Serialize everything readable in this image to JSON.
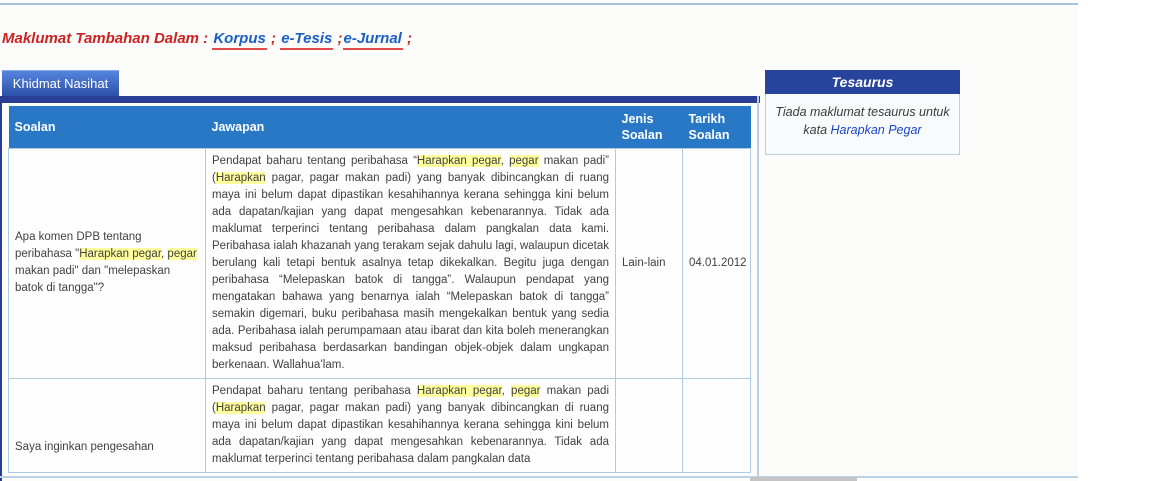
{
  "header": {
    "title": "Maklumat Tambahan Dalam :",
    "links": [
      "Korpus",
      "e-Tesis",
      "e-Jurnal"
    ],
    "sep1": " ; ",
    "sep2": " ;",
    "sep3": " ;"
  },
  "tab": {
    "label": "Khidmat Nasihat"
  },
  "table": {
    "columns": [
      "Soalan",
      "Jawapan",
      "Jenis Soalan",
      "Tarikh Soalan"
    ],
    "rows": [
      {
        "soalan": [
          {
            "t": "Apa komen DPB tentang peribahasa \""
          },
          {
            "t": "Harapkan pegar",
            "h": true
          },
          {
            "t": ", "
          },
          {
            "t": "pegar",
            "h": true
          },
          {
            "t": " makan padi\" dan \"melepaskan batok di tangga\"?"
          }
        ],
        "jawapan": [
          {
            "t": "Pendapat baharu tentang peribahasa “"
          },
          {
            "t": "Harapkan pegar",
            "h": true
          },
          {
            "t": ", "
          },
          {
            "t": "pegar",
            "h": true
          },
          {
            "t": " makan padi” ("
          },
          {
            "t": "Harapkan",
            "h": true
          },
          {
            "t": " pagar, pagar makan padi) yang banyak dibincangkan di ruang maya ini belum dapat dipastikan kesahihannya kerana sehingga kini belum ada dapatan/kajian yang dapat mengesahkan kebenarannya. Tidak ada maklumat terperinci tentang peribahasa dalam pangkalan data kami. Peribahasa ialah khazanah yang terakam sejak dahulu lagi, walaupun dicetak berulang kali tetapi bentuk asalnya tetap dikekalkan. Begitu juga dengan peribahasa “Melepaskan batok di tangga”. Walaupun pendapat yang mengatakan bahawa yang benarnya ialah “Melepaskan batok di tangga” semakin digemari, buku peribahasa masih mengekalkan bentuk yang sedia ada. Peribahasa ialah perumpamaan atau ibarat dan kita boleh menerangkan maksud peribahasa berdasarkan bandingan objek-objek dalam ungkapan berkenaan. Wallahua’lam."
          }
        ],
        "jenis": "Lain-lain",
        "tarikh": "04.01.2012"
      },
      {
        "soalan": [
          {
            "t": "Saya inginkan pengesahan"
          }
        ],
        "jawapan": [
          {
            "t": "Pendapat baharu tentang peribahasa "
          },
          {
            "t": "Harapkan pegar",
            "h": true
          },
          {
            "t": ", "
          },
          {
            "t": "pegar",
            "h": true
          },
          {
            "t": " makan padi ("
          },
          {
            "t": "Harapkan",
            "h": true
          },
          {
            "t": " pagar, pagar makan padi) yang banyak dibincangkan di ruang maya ini belum dapat dipastikan kesahihannya kerana sehingga kini belum ada dapatan/kajian yang dapat mengesahkan kebenarannya. Tidak ada maklumat terperinci tentang peribahasa dalam pangkalan data"
          }
        ],
        "jenis": "",
        "tarikh": ""
      }
    ]
  },
  "tesaurus": {
    "title": "Tesaurus",
    "message_prefix": "Tiada maklumat tesaurus untuk kata ",
    "keyword": "Harapkan Pegar"
  },
  "colors": {
    "accent_blue": "#2878c6",
    "navy": "#2b3e96",
    "red": "#cc2222",
    "link_blue": "#1a5fc8",
    "highlight": "#ffff9e"
  }
}
